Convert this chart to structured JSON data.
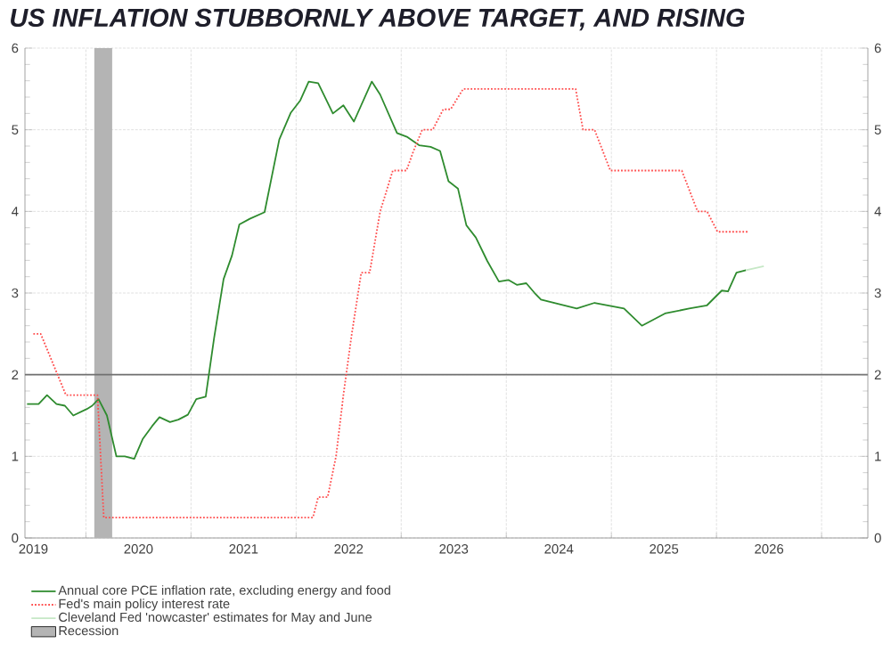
{
  "chart_data": {
    "type": "line",
    "title": "US INFLATION STUBBORNLY ABOVE TARGET, AND RISING",
    "xlim": [
      2019.42,
      2027.44
    ],
    "ylim": [
      0,
      6
    ],
    "yticks": [
      0,
      1,
      2,
      3,
      4,
      5,
      6
    ],
    "y2lim": [
      0,
      6
    ],
    "y2ticks": [
      0,
      1,
      2,
      3,
      4,
      5,
      6
    ],
    "xticks": [
      {
        "value": 2019.5,
        "label": "2019"
      },
      {
        "value": 2020.5,
        "label": "2020"
      },
      {
        "value": 2021.5,
        "label": "2021"
      },
      {
        "value": 2022.5,
        "label": "2022"
      },
      {
        "value": 2023.5,
        "label": "2023"
      },
      {
        "value": 2024.5,
        "label": "2024"
      },
      {
        "value": 2025.5,
        "label": "2025"
      },
      {
        "value": 2026.5,
        "label": "2026"
      },
      {
        "value": 2020,
        "label": null
      },
      {
        "value": 2021,
        "label": null
      },
      {
        "value": 2022,
        "label": null
      },
      {
        "value": 2023,
        "label": null
      },
      {
        "value": 2024,
        "label": null
      },
      {
        "value": 2025,
        "label": null
      },
      {
        "value": 2026,
        "label": null
      },
      {
        "value": 2027,
        "label": null
      }
    ],
    "grid": true,
    "legend": "bottom",
    "marker": "none",
    "series": [
      {
        "name": "Annual core PCE inflation rate, excluding energy and food",
        "color": "#2e8b2e",
        "line_style": "solid",
        "x": [
          2019.44,
          2019.55,
          2019.63,
          2019.72,
          2019.8,
          2019.88,
          2020.01,
          2020.06,
          2020.12,
          2020.2,
          2020.29,
          2020.37,
          2020.46,
          2020.54,
          2020.63,
          2020.7,
          2020.8,
          2020.88,
          2020.97,
          2021.05,
          2021.14,
          2021.22,
          2021.31,
          2021.39,
          2021.46,
          2021.56,
          2021.7,
          2021.84,
          2021.95,
          2022.04,
          2022.12,
          2022.21,
          2022.35,
          2022.45,
          2022.55,
          2022.72,
          2022.8,
          2022.96,
          2023.06,
          2023.17,
          2023.28,
          2023.37,
          2023.45,
          2023.54,
          2023.62,
          2023.71,
          2023.82,
          2023.93,
          2024.02,
          2024.1,
          2024.19,
          2024.27,
          2024.33,
          2024.67,
          2024.84,
          2025.12,
          2025.29,
          2025.51,
          2025.74,
          2025.91,
          2026.05,
          2026.11,
          2026.19,
          2026.28
        ],
        "values": [
          1.64,
          1.64,
          1.75,
          1.64,
          1.62,
          1.5,
          1.58,
          1.62,
          1.7,
          1.5,
          1.0,
          1.0,
          0.97,
          1.21,
          1.37,
          1.48,
          1.42,
          1.45,
          1.51,
          1.7,
          1.73,
          2.45,
          3.17,
          3.46,
          3.84,
          3.91,
          3.99,
          4.88,
          5.21,
          5.36,
          5.59,
          5.57,
          5.2,
          5.3,
          5.1,
          5.59,
          5.43,
          4.96,
          4.91,
          4.81,
          4.79,
          4.74,
          4.37,
          4.28,
          3.83,
          3.68,
          3.39,
          3.14,
          3.16,
          3.1,
          3.12,
          3.0,
          2.92,
          2.81,
          2.88,
          2.81,
          2.6,
          2.75,
          2.81,
          2.85,
          3.03,
          3.02,
          3.25,
          3.28
        ]
      },
      {
        "name": "Fed's main policy interest rate",
        "color": "#ff4d4d",
        "line_style": "dotted",
        "x": [
          2019.5,
          2019.57,
          2019.81,
          2020.11,
          2020.17,
          2022.16,
          2022.21,
          2022.3,
          2022.38,
          2022.45,
          2022.53,
          2022.62,
          2022.7,
          2022.8,
          2022.92,
          2023.05,
          2023.12,
          2023.2,
          2023.3,
          2023.4,
          2023.47,
          2023.59,
          2024.66,
          2024.73,
          2024.84,
          2024.99,
          2025.67,
          2025.82,
          2025.91,
          2026.01,
          2026.31
        ],
        "values": [
          2.5,
          2.5,
          1.75,
          1.75,
          0.25,
          0.25,
          0.5,
          0.5,
          1.0,
          1.75,
          2.5,
          3.25,
          3.25,
          4.0,
          4.5,
          4.5,
          4.75,
          5.0,
          5.0,
          5.25,
          5.25,
          5.5,
          5.5,
          5.0,
          5.0,
          4.5,
          4.5,
          4.0,
          4.0,
          3.75,
          3.75
        ]
      },
      {
        "name": "Cleveland Fed 'nowcaster' estimates for May and June",
        "color": "#c6e8c6",
        "line_style": "solid",
        "x": [
          2026.28,
          2026.45
        ],
        "values": [
          3.28,
          3.33
        ]
      }
    ],
    "bands": [
      {
        "axis": "x",
        "from": 2020.08,
        "to": 2020.25,
        "label": "Recession",
        "color": "#b4b4b4"
      }
    ],
    "ref_lines": [
      {
        "axis": "y",
        "value": 2,
        "color": "#707070"
      }
    ]
  }
}
